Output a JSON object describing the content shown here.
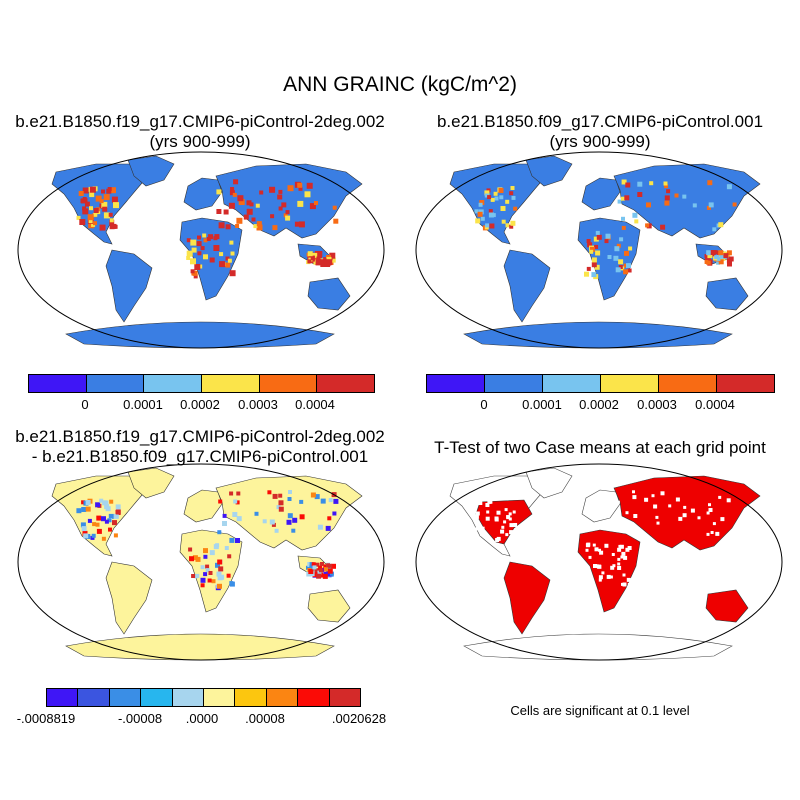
{
  "figure": {
    "title": "ANN GRAINC (kgC/m^2)",
    "panels": [
      {
        "title_line1": "b.e21.B1850.f19_g17.CMIP6-piControl-2deg.002",
        "title_line2": "(yrs 900-999)"
      },
      {
        "title_line1": "b.e21.B1850.f09_g17.CMIP6-piControl.001",
        "title_line2": "(yrs 900-999)"
      },
      {
        "title_line1": "b.e21.B1850.f19_g17.CMIP6-piControl-2deg.002",
        "title_line2": "- b.e21.B1850.f09_g17.CMIP6-piControl.001"
      },
      {
        "title_line1": "T-Test of two Case means at each grid point"
      }
    ],
    "significance_note": "Cells are significant at 0.1 level",
    "colorbar_abs": {
      "colors": [
        "#3f16f6",
        "#3a7ee3",
        "#78c4ef",
        "#fbe44a",
        "#f86b14",
        "#d42a29"
      ],
      "labels": [
        "0",
        "0.0001",
        "0.0002",
        "0.0003",
        "0.0004"
      ]
    },
    "colorbar_diff": {
      "colors": [
        "#3f16f6",
        "#3b55e0",
        "#3a8ee6",
        "#27b6ee",
        "#a7d5ee",
        "#fdf49c",
        "#fcc60f",
        "#fb8512",
        "#fb0b06",
        "#d42a29"
      ],
      "labels": [
        "-.0008819",
        "-.00008",
        ".0000",
        ".00008",
        ".0020628"
      ]
    },
    "colors": {
      "ocean": "#ffffff",
      "land_abs": "#3a7ee3",
      "land_diff": "#fdf49c",
      "signif": "#ee0000"
    }
  }
}
